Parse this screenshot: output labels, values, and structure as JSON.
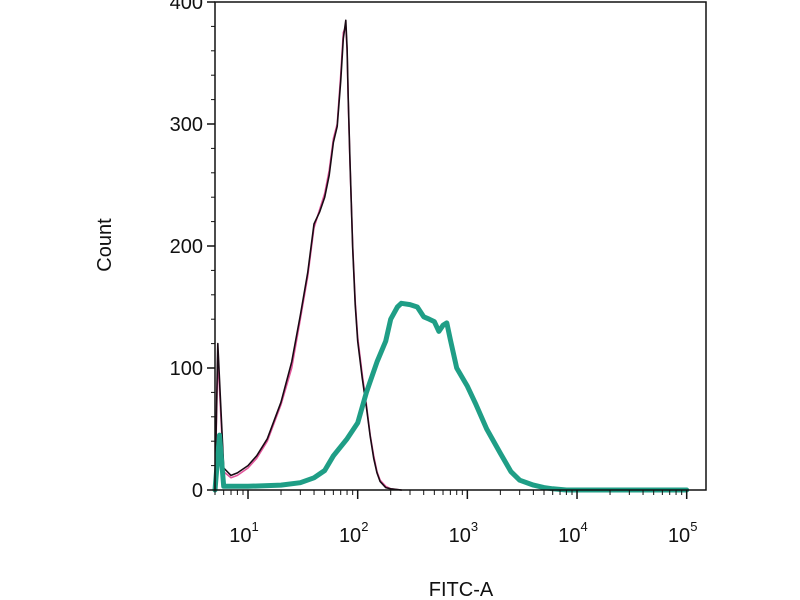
{
  "chart_data": {
    "type": "line",
    "title": "",
    "xlabel": "FITC-A",
    "ylabel": "Count",
    "x_scale": "log",
    "xlim": [
      5,
      150000
    ],
    "ylim": [
      0,
      400
    ],
    "grid": false,
    "legend": "none",
    "y_ticks": [
      "0",
      "100",
      "200",
      "300",
      "400"
    ],
    "x_ticks": [
      {
        "base": "10",
        "exp": "1"
      },
      {
        "base": "10",
        "exp": "2"
      },
      {
        "base": "10",
        "exp": "3"
      },
      {
        "base": "10",
        "exp": "4"
      },
      {
        "base": "10",
        "exp": "5"
      }
    ],
    "series": [
      {
        "color": "#e0559a",
        "width": 1.6,
        "x": [
          5,
          5.3,
          6,
          7,
          8,
          10,
          12,
          15,
          20,
          25,
          30,
          35,
          40,
          45,
          50,
          55,
          60,
          65,
          70,
          74,
          78,
          80,
          82,
          85,
          90,
          95,
          100,
          110,
          120,
          130,
          140,
          150,
          160,
          180,
          200,
          250
        ],
        "y": [
          0,
          110,
          15,
          10,
          12,
          18,
          26,
          40,
          70,
          100,
          140,
          175,
          215,
          230,
          243,
          262,
          288,
          300,
          340,
          375,
          380,
          360,
          320,
          270,
          200,
          155,
          125,
          95,
          70,
          45,
          28,
          15,
          8,
          3,
          1,
          0
        ]
      },
      {
        "color": "#1a0a14",
        "width": 1.6,
        "x": [
          5,
          5.3,
          6,
          7,
          8,
          10,
          12,
          15,
          20,
          25,
          30,
          35,
          40,
          45,
          50,
          55,
          60,
          65,
          70,
          74,
          78,
          80,
          82,
          85,
          90,
          95,
          100,
          110,
          120,
          130,
          140,
          150,
          160,
          180,
          200,
          250
        ],
        "y": [
          0,
          120,
          18,
          12,
          14,
          20,
          28,
          42,
          72,
          105,
          143,
          178,
          218,
          228,
          240,
          258,
          285,
          298,
          335,
          370,
          385,
          362,
          322,
          272,
          198,
          152,
          122,
          92,
          68,
          44,
          26,
          14,
          7,
          2,
          1,
          0
        ]
      },
      {
        "color": "#1f9e86",
        "width": 5,
        "x": [
          5,
          5.5,
          6,
          10,
          20,
          30,
          40,
          50,
          60,
          80,
          100,
          120,
          150,
          180,
          200,
          230,
          250,
          300,
          350,
          400,
          450,
          500,
          550,
          600,
          650,
          700,
          800,
          1000,
          1200,
          1500,
          2000,
          2500,
          3000,
          4000,
          5000,
          6000,
          8000,
          10000,
          100000
        ],
        "y": [
          0,
          45,
          3,
          3,
          4,
          6,
          10,
          16,
          28,
          42,
          55,
          80,
          105,
          122,
          140,
          150,
          153,
          152,
          150,
          142,
          140,
          138,
          130,
          135,
          137,
          123,
          100,
          85,
          70,
          50,
          30,
          15,
          8,
          4,
          2,
          1,
          0,
          0,
          0
        ]
      }
    ]
  }
}
